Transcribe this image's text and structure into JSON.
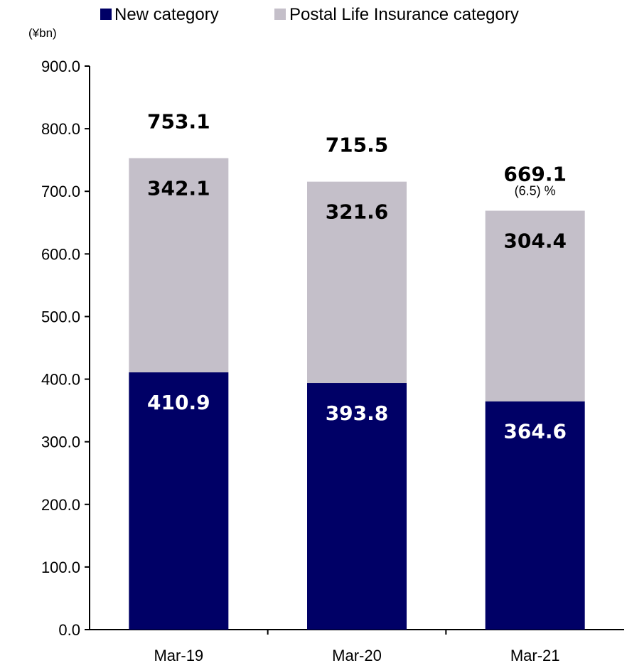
{
  "chart_data": {
    "type": "bar",
    "stacked": true,
    "unit": "(¥bn)",
    "categories": [
      "Mar-19",
      "Mar-20",
      "Mar-21"
    ],
    "series": [
      {
        "name": "New category",
        "color": "#000066",
        "label_color": "#ffffff",
        "values": [
          410.9,
          393.8,
          364.6
        ],
        "labels": [
          "410.9",
          "393.8",
          "364.6"
        ]
      },
      {
        "name": "Postal Life Insurance category",
        "color": "#c4bfc9",
        "label_color": "#000000",
        "values": [
          342.1,
          321.6,
          304.4
        ],
        "labels": [
          "342.1",
          "321.6",
          "304.4"
        ]
      }
    ],
    "totals": [
      "753.1",
      "715.5",
      "669.1"
    ],
    "annotations": [
      "",
      "",
      "(6.5) %"
    ],
    "yticks": [
      "0.0",
      "100.0",
      "200.0",
      "300.0",
      "400.0",
      "500.0",
      "600.0",
      "700.0",
      "800.0",
      "900.0"
    ],
    "ylim": [
      0,
      900
    ],
    "legend_position": "top",
    "grid": false
  }
}
